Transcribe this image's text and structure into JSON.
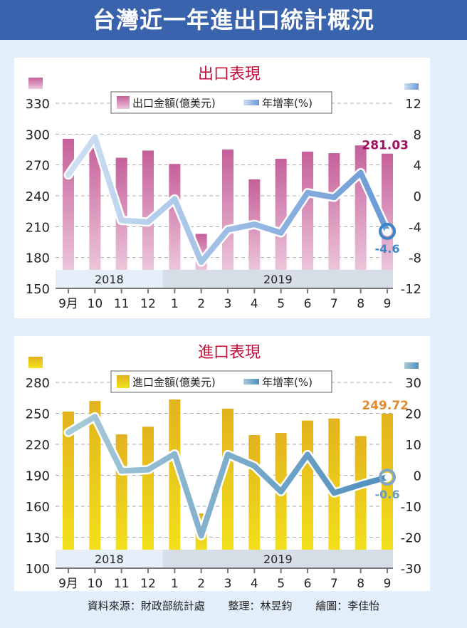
{
  "header": {
    "title": "台灣近一年進出口統計概況"
  },
  "footer": {
    "source": "資料來源：財政部統計處",
    "editor": "整理：林昱鈞",
    "illustrator": "繪圖：李佳怡"
  },
  "chart_data": [
    {
      "type": "bar",
      "title": "出口表現",
      "categories": [
        "9月",
        "10",
        "11",
        "12",
        "1",
        "2",
        "3",
        "4",
        "5",
        "6",
        "7",
        "8",
        "9"
      ],
      "year_bands": [
        {
          "label": "2018",
          "from": 0,
          "to": 3
        },
        {
          "label": "2019",
          "from": 4,
          "to": 12
        }
      ],
      "series": [
        {
          "name": "出口金額(億美元)",
          "type": "bar",
          "axis": "left",
          "color": "#c8609a",
          "values": [
            295.5,
            294,
            277,
            284,
            271,
            203,
            285,
            256,
            276,
            283,
            281.5,
            289,
            281.03
          ]
        },
        {
          "name": "年增率(%)",
          "type": "line",
          "axis": "right",
          "color": "#7fa8dc",
          "values": [
            2.7,
            7.6,
            -3.2,
            -3.4,
            -0.4,
            -8.6,
            -4.4,
            -3.7,
            -4.8,
            0.4,
            -0.2,
            3.0,
            -4.6
          ]
        }
      ],
      "annotations": [
        {
          "text": "281.03",
          "series": 0,
          "index": 12,
          "color": "#a0105e"
        },
        {
          "text": "-4.6",
          "series": 1,
          "index": 12,
          "color": "#3a86c8"
        }
      ],
      "left_axis": {
        "ticks": [
          150,
          180,
          210,
          240,
          270,
          300,
          330
        ],
        "ylim": [
          150,
          330
        ]
      },
      "right_axis": {
        "ticks": [
          -12,
          -8,
          -4,
          0,
          4,
          8,
          12
        ],
        "ylim": [
          -12,
          12
        ]
      },
      "legend": [
        "出口金額(億美元)",
        "年增率(%)"
      ],
      "legend_position": "top-center",
      "grid": true,
      "title_color": "#c0103a"
    },
    {
      "type": "bar",
      "title": "進口表現",
      "categories": [
        "9月",
        "10",
        "11",
        "12",
        "1",
        "2",
        "3",
        "4",
        "5",
        "6",
        "7",
        "8",
        "9"
      ],
      "year_bands": [
        {
          "label": "2018",
          "from": 0,
          "to": 3
        },
        {
          "label": "2019",
          "from": 4,
          "to": 12
        }
      ],
      "series": [
        {
          "name": "進口金額(億美元)",
          "type": "bar",
          "axis": "left",
          "color": "#e8c21a",
          "values": [
            251.7,
            262,
            229.6,
            237,
            263.4,
            153,
            254.5,
            229,
            231,
            243,
            245,
            228,
            249.72
          ]
        },
        {
          "name": "年增率(%)",
          "type": "line",
          "axis": "right",
          "color": "#6fa3c4",
          "values": [
            13.8,
            18.9,
            1.4,
            1.8,
            6.9,
            -19.5,
            6.7,
            3.0,
            -5.3,
            6.7,
            -5.7,
            -3.0,
            -0.6
          ]
        }
      ],
      "annotations": [
        {
          "text": "249.72",
          "series": 0,
          "index": 12,
          "color": "#e08a2a"
        },
        {
          "text": "-0.6",
          "series": 1,
          "index": 12,
          "color": "#6f9ab8"
        }
      ],
      "left_axis": {
        "ticks": [
          100,
          130,
          160,
          190,
          220,
          250,
          280
        ],
        "ylim": [
          100,
          280
        ]
      },
      "right_axis": {
        "ticks": [
          -30,
          -20,
          -10,
          0,
          10,
          20,
          30
        ],
        "ylim": [
          -30,
          30
        ]
      },
      "legend": [
        "進口金額(億美元)",
        "年增率(%)"
      ],
      "legend_position": "top-center",
      "grid": true,
      "title_color": "#c0103a"
    }
  ]
}
